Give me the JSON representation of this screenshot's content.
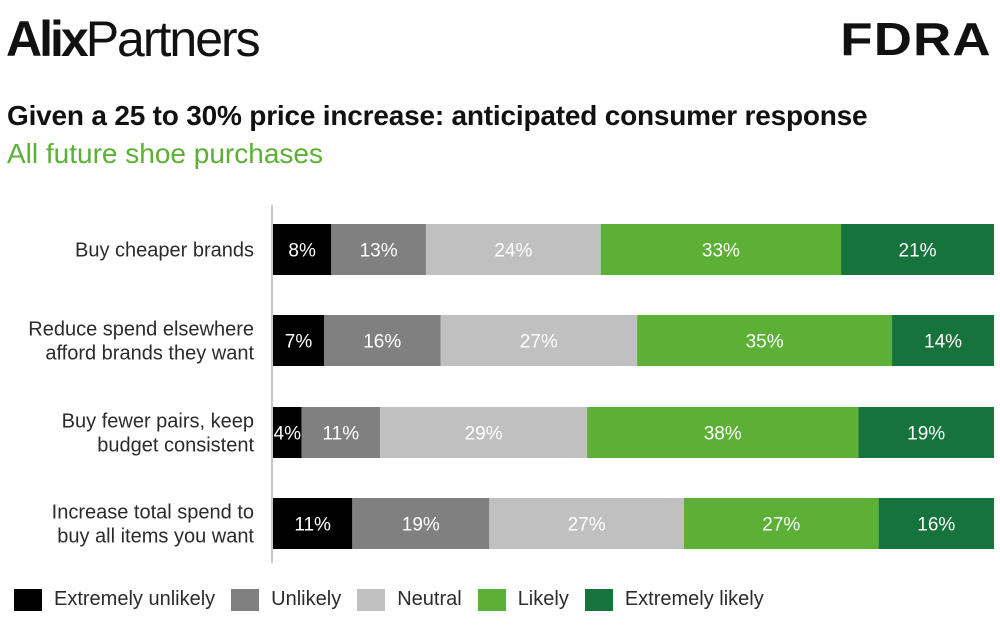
{
  "header": {
    "logo_left_bold": "Alix",
    "logo_left_regular": "Partners",
    "logo_right": "FDRA",
    "title": "Given a 25 to 30% price increase: anticipated consumer response",
    "subtitle": "All future shoe purchases"
  },
  "colors": {
    "subtitle": "#5bb035",
    "extremely_unlikely": "#000000",
    "unlikely": "#808080",
    "neutral": "#c0c0c0",
    "likely": "#5bb035",
    "extremely_likely": "#16733c"
  },
  "chart_data": {
    "type": "bar",
    "orientation": "horizontal",
    "stacked": true,
    "title": "Given a 25 to 30% price increase: anticipated consumer response",
    "subtitle": "All future shoe purchases",
    "xlabel": "",
    "ylabel": "",
    "grid": false,
    "legend_position": "bottom-left",
    "categories": [
      "Buy cheaper brands",
      "Reduce spend elsewhere afford brands they want",
      "Buy fewer pairs, keep budget consistent",
      "Increase total spend to buy all items you want"
    ],
    "category_lines": [
      [
        "Buy cheaper brands"
      ],
      [
        "Reduce spend elsewhere",
        "afford brands they want"
      ],
      [
        "Buy fewer pairs, keep",
        "budget consistent"
      ],
      [
        "Increase total spend to",
        "buy all items you want"
      ]
    ],
    "series": [
      {
        "name": "Extremely unlikely",
        "color": "#000000",
        "values": [
          8,
          7,
          4,
          11
        ]
      },
      {
        "name": "Unlikely",
        "color": "#808080",
        "values": [
          13,
          16,
          11,
          19
        ]
      },
      {
        "name": "Neutral",
        "color": "#c0c0c0",
        "values": [
          24,
          27,
          29,
          27
        ]
      },
      {
        "name": "Likely",
        "color": "#5bb035",
        "values": [
          33,
          35,
          38,
          27
        ]
      },
      {
        "name": "Extremely likely",
        "color": "#16733c",
        "values": [
          21,
          14,
          19,
          16
        ]
      }
    ],
    "value_suffix": "%",
    "xlim": [
      0,
      100
    ]
  }
}
